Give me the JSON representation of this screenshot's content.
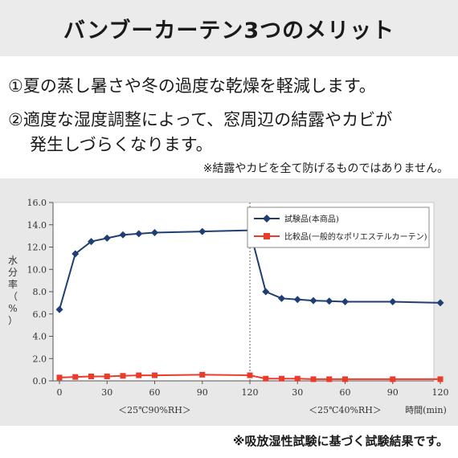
{
  "header": {
    "title": "バンブーカーテン3つのメリット"
  },
  "points": {
    "p1": "①夏の蒸し暑さや冬の過度な乾燥を軽減します。",
    "p2_line1": "②適度な湿度調整によって、窓周辺の結露やカビが",
    "p2_line2": "発生しづらくなります。"
  },
  "notes": {
    "disclaimer": "※結露やカビを全て防げるものではありません。",
    "source": "※吸放湿性試験に基づく試験結果です。"
  },
  "colors": {
    "header_bg": "#ebebeb",
    "chart_bg": "#e8e8e8",
    "series1": "#1f3f74",
    "series2": "#ea3b2b"
  },
  "chart_data": {
    "type": "line",
    "ylabel": "水分率（%）",
    "xlabel": "時間(min)",
    "ylim": [
      0,
      16
    ],
    "yticks": [
      "16.0",
      "14.0",
      "12.0",
      "10.0",
      "8.0",
      "6.0",
      "4.0",
      "2.0",
      "0.0"
    ],
    "grid": false,
    "legend": "top-right",
    "phases": [
      {
        "label": "＜25℃90%RH＞",
        "ticks": [
          "0",
          "30",
          "60",
          "90",
          "120"
        ]
      },
      {
        "label": "＜25℃40%RH＞",
        "ticks": [
          "30",
          "60",
          "90",
          "120"
        ]
      }
    ],
    "phase_divider_at": 120,
    "x": [
      0,
      10,
      20,
      30,
      40,
      50,
      60,
      90,
      120,
      130,
      140,
      150,
      160,
      170,
      180,
      210,
      240
    ],
    "series": [
      {
        "name": "試験品(本商品)",
        "marker": "diamond",
        "values": [
          6.4,
          11.4,
          12.5,
          12.8,
          13.1,
          13.2,
          13.3,
          13.4,
          13.5,
          8.0,
          7.4,
          7.3,
          7.2,
          7.15,
          7.1,
          7.1,
          7.0
        ]
      },
      {
        "name": "比較品(一般的なポリエステルカーテン)",
        "marker": "square",
        "values": [
          0.3,
          0.35,
          0.4,
          0.4,
          0.45,
          0.5,
          0.5,
          0.55,
          0.5,
          0.2,
          0.2,
          0.2,
          0.15,
          0.15,
          0.15,
          0.15,
          0.15
        ]
      }
    ]
  }
}
